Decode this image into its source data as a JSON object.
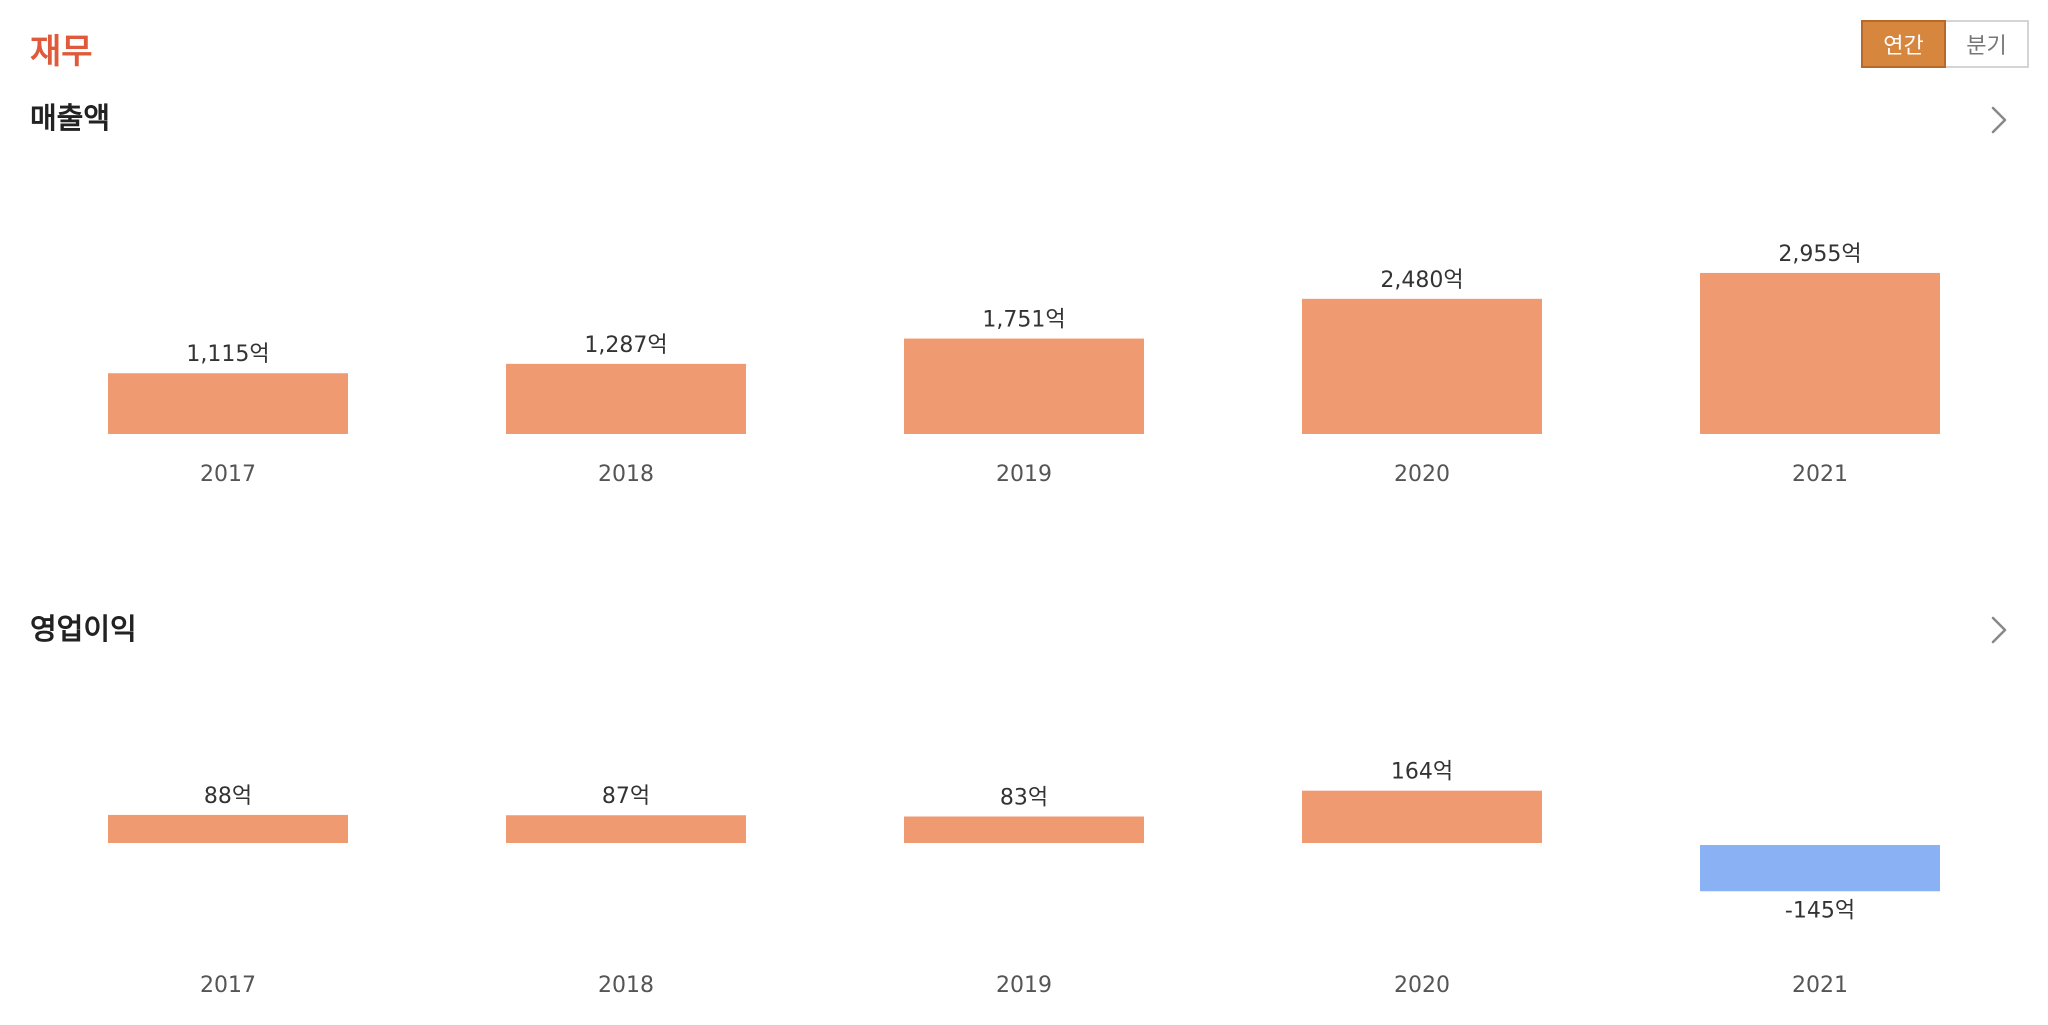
{
  "page_title": "재무",
  "toggle": {
    "annual_label": "연간",
    "quarterly_label": "분기",
    "selected": "annual"
  },
  "colors": {
    "title": "#e0593a",
    "positive_bar": "#ef9a71",
    "negative_bar": "#8ab1f4",
    "toggle_active": "#d7863e"
  },
  "sections": [
    {
      "title": "매출액",
      "chevron_icon": "chevron-right-icon"
    },
    {
      "title": "영업이익",
      "chevron_icon": "chevron-right-icon"
    }
  ],
  "chart_data": [
    {
      "type": "bar",
      "title": "매출액",
      "categories": [
        "2017",
        "2018",
        "2019",
        "2020",
        "2021"
      ],
      "values": [
        1115,
        1287,
        1751,
        2480,
        2955
      ],
      "value_labels": [
        "1,115억",
        "1,287억",
        "1,751억",
        "2,480억",
        "2,955억"
      ],
      "unit": "억",
      "grid": false,
      "legend": "none"
    },
    {
      "type": "bar",
      "title": "영업이익",
      "categories": [
        "2017",
        "2018",
        "2019",
        "2020",
        "2021"
      ],
      "values": [
        88,
        87,
        83,
        164,
        -145
      ],
      "value_labels": [
        "88억",
        "87억",
        "83억",
        "164억",
        "-145억"
      ],
      "unit": "억",
      "grid": false,
      "legend": "none"
    }
  ]
}
